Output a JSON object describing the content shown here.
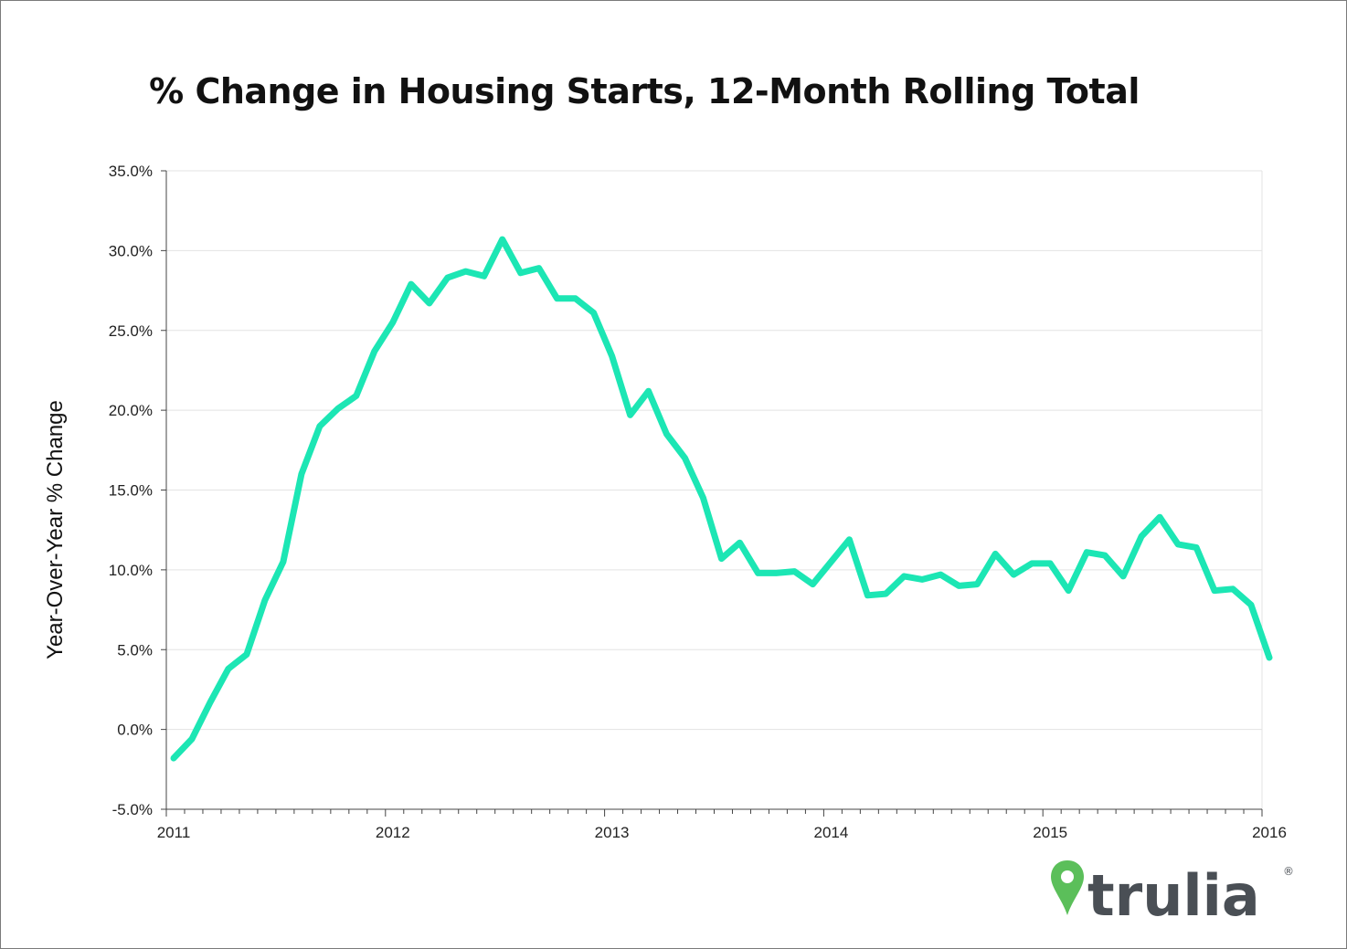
{
  "chart_data": {
    "type": "line",
    "title": "% Change in Housing Starts, 12-Month Rolling Total",
    "xlabel": "",
    "ylabel": "Year-Over-Year % Change",
    "ylim": [
      -5,
      35
    ],
    "yticks": [
      "-5.0%",
      "0.0%",
      "5.0%",
      "10.0%",
      "15.0%",
      "20.0%",
      "25.0%",
      "30.0%",
      "35.0%"
    ],
    "xtick_labels": [
      "2011",
      "2012",
      "2013",
      "2014",
      "2015",
      "2016"
    ],
    "grid": true,
    "series": [
      {
        "color": "#1ce6b4",
        "x": [
          "2011-01",
          "2011-02",
          "2011-03",
          "2011-04",
          "2011-05",
          "2011-06",
          "2011-07",
          "2011-08",
          "2011-09",
          "2011-10",
          "2011-11",
          "2011-12",
          "2012-01",
          "2012-02",
          "2012-03",
          "2012-04",
          "2012-05",
          "2012-06",
          "2012-07",
          "2012-08",
          "2012-09",
          "2012-10",
          "2012-11",
          "2012-12",
          "2013-01",
          "2013-02",
          "2013-03",
          "2013-04",
          "2013-05",
          "2013-06",
          "2013-07",
          "2013-08",
          "2013-09",
          "2013-10",
          "2013-11",
          "2013-12",
          "2014-01",
          "2014-02",
          "2014-03",
          "2014-04",
          "2014-05",
          "2014-06",
          "2014-07",
          "2014-08",
          "2014-09",
          "2014-10",
          "2014-11",
          "2014-12",
          "2015-01",
          "2015-02",
          "2015-03",
          "2015-04",
          "2015-05",
          "2015-06",
          "2015-07",
          "2015-08",
          "2015-09",
          "2015-10",
          "2015-11",
          "2015-12",
          "2016-01"
        ],
        "values": [
          -1.8,
          -0.6,
          1.7,
          3.8,
          4.7,
          8.1,
          10.5,
          16.0,
          19.0,
          20.1,
          20.9,
          23.7,
          25.5,
          27.9,
          26.7,
          28.3,
          28.7,
          28.4,
          30.7,
          28.6,
          28.9,
          27.0,
          27.0,
          26.1,
          23.4,
          19.7,
          21.2,
          18.5,
          17.0,
          14.5,
          10.7,
          11.7,
          9.8,
          9.8,
          9.9,
          9.1,
          10.5,
          11.9,
          8.4,
          8.5,
          9.6,
          9.4,
          9.7,
          9.0,
          9.1,
          11.0,
          9.7,
          10.4,
          10.4,
          8.7,
          11.1,
          10.9,
          9.6,
          12.1,
          13.3,
          11.6,
          11.4,
          8.7,
          8.8,
          7.8,
          4.5
        ]
      }
    ]
  },
  "logo": {
    "text": "trulia",
    "registered": "®"
  }
}
